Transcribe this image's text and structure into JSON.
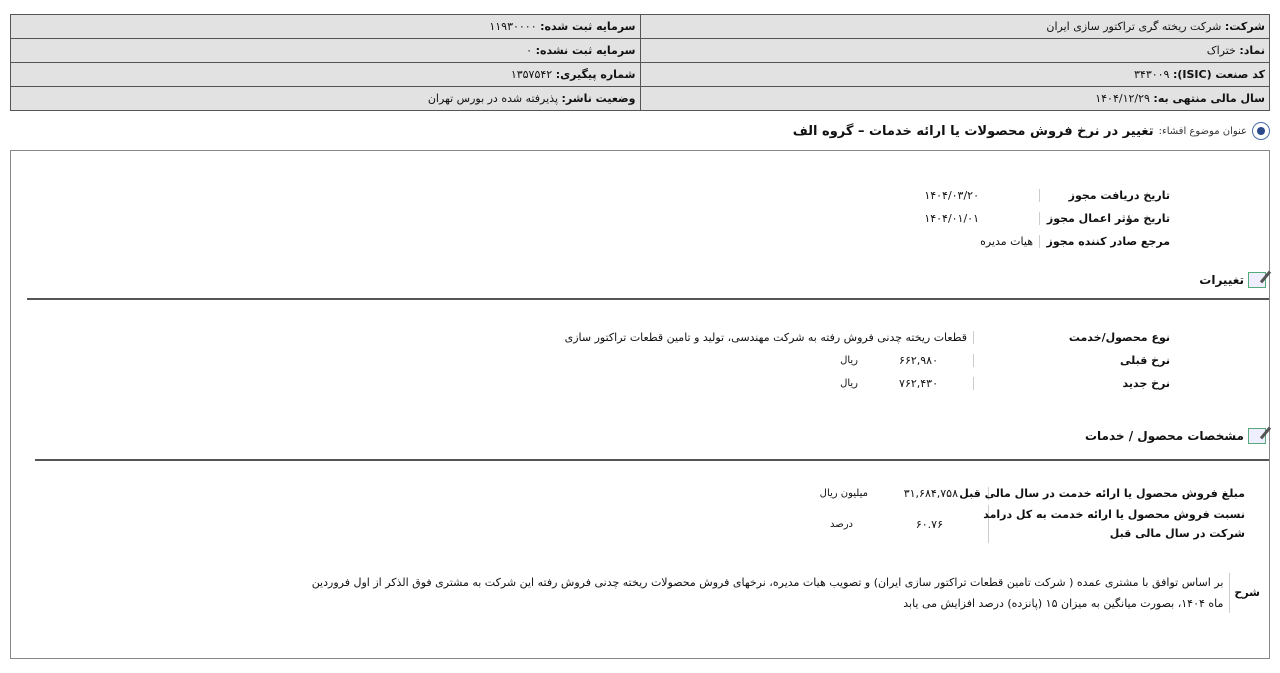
{
  "header": {
    "company_label": "شرکت:",
    "company": "شرکت ریخته گری تراکتور سازی ایران",
    "symbol_label": "نماد:",
    "symbol": "ختراک",
    "isic_label": "کد صنعت (ISIC):",
    "isic": "۳۴۳۰۰۹",
    "fiscal_label": "سال مالی منتهی به:",
    "fiscal": "۱۴۰۴/۱۲/۲۹",
    "reg_capital_label": "سرمایه ثبت شده:",
    "reg_capital": "۱۱۹۳۰۰۰۰",
    "unreg_capital_label": "سرمایه ثبت نشده:",
    "unreg_capital": "۰",
    "tracking_label": "شماره پیگیری:",
    "tracking": "۱۳۵۷۵۴۲",
    "status_label": "وضعیت ناشر:",
    "status": "پذیرفته شده در بورس تهران"
  },
  "subject": {
    "label": "عنوان موضوع افشاء:",
    "value": "تغییر در نرخ فروش محصولات یا ارائه خدمات – گروه الف"
  },
  "permit": [
    {
      "label": "تاریخ دریافت مجوز",
      "value": "۱۴۰۴/۰۳/۲۰"
    },
    {
      "label": "تاریخ مؤثر اعمال مجوز",
      "value": "۱۴۰۴/۰۱/۰۱"
    },
    {
      "label": "مرجع صادر کننده مجوز",
      "value": "هیات مدیره"
    }
  ],
  "changes": {
    "title": "تغییرات",
    "product_label": "نوع محصول/خدمت",
    "product": "قطعات ریخته چدنی فروش رفته به شرکت مهندسی، تولید و تامین قطعات تراکتور سازی",
    "old_label": "نرخ قبلی",
    "old": "۶۶۲,۹۸۰",
    "old_unit": "ریال",
    "new_label": "نرخ جدید",
    "new": "۷۶۲,۴۳۰",
    "new_unit": "ریال"
  },
  "specs": {
    "title": "مشخصات محصول / خدمات",
    "sales_label": "مبلغ فروش محصول یا ارائه خدمت در سال مالی قبل",
    "sales": "۳۱,۶۸۴,۷۵۸",
    "sales_unit": "میلیون ریال",
    "ratio_label_1": "نسبت فروش محصول یا ارائه خدمت به کل درامد",
    "ratio_label_2": "شرکت در سال مالی قبل",
    "ratio": "۶۰.۷۶",
    "ratio_unit": "درصد"
  },
  "description": {
    "label": "شرح",
    "line1": "بر اساس توافق با مشتری عمده ( شرکت تامین قطعات تراکتور سازی ایران) و تصویب هیات مدیره، نرخهای فروش محصولات ریخته چدنی فروش رفته این شرکت به مشتری فوق الذکر از اول فروردین",
    "line2": "ماه ۱۴۰۴، بصورت میانگین به میزان ۱۵ (پانزده) درصد افزایش می یابد"
  }
}
